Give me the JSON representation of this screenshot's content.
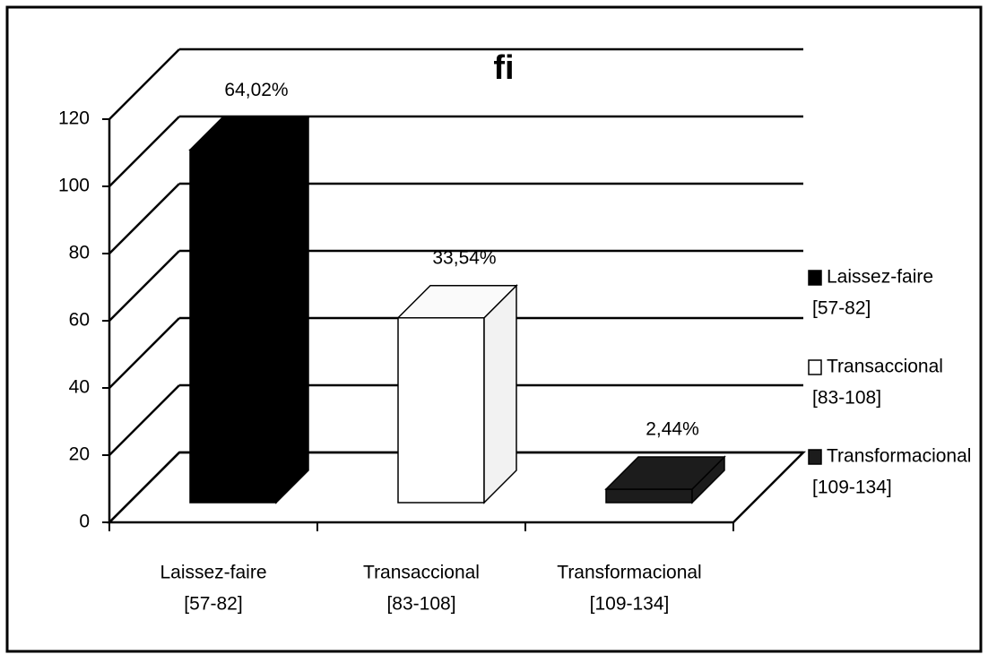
{
  "chart_data": {
    "type": "bar3d",
    "title": "fi",
    "categories": [
      [
        "Laissez-faire",
        "[57-82]"
      ],
      [
        "Transaccional",
        "[83-108]"
      ],
      [
        "Transformacional",
        "[109-134]"
      ]
    ],
    "values": [
      105,
      55,
      4
    ],
    "annotations": [
      "64,02%",
      "33,54%",
      "2,44%"
    ],
    "colors": [
      "#000000",
      "#ffffff",
      "#1c1c1c"
    ],
    "ylim": [
      0,
      120
    ],
    "yticks": [
      0,
      20,
      40,
      60,
      80,
      100,
      120
    ],
    "grid": true
  }
}
